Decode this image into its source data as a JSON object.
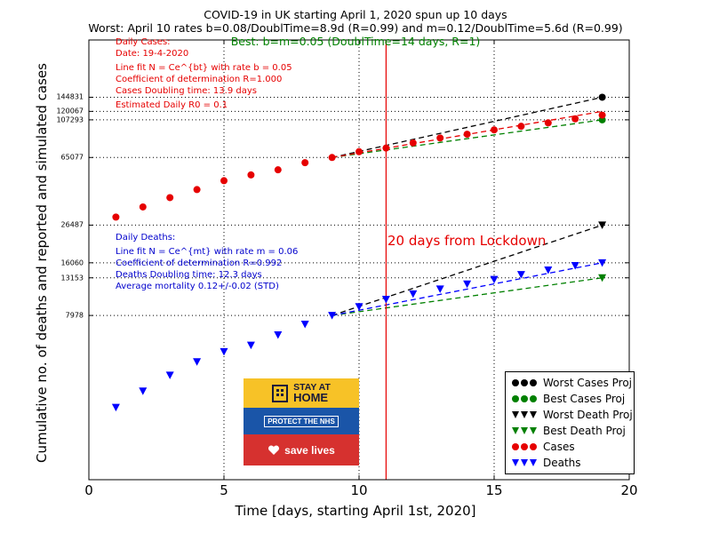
{
  "titles": {
    "line1": "COVID-19 in UK starting April 1, 2020 spun up 10 days",
    "line2": "Worst: April 10 rates b=0.08/DoublTime=8.9d (R=0.99) and m=0.12/DoublTime=5.6d (R=0.99)",
    "line3": "Best: b=m=0.05 (DoublTime=14 days, R=1)"
  },
  "annotations": {
    "cases": [
      "Daily Cases:",
      "Date: 19-4-2020",
      "Line fit N = Ce^{bt} with rate b = 0.05",
      "Coefficient of determination R=1.000",
      "Cases Doubling time: 13.9 days",
      "Estimated Daily R0 = 0.1"
    ],
    "deaths": [
      "Daily Deaths:",
      "Line fit N = Ce^{mt} with rate m = 0.06",
      "Coefficient of determination R=0.992",
      "Deaths Doubling time: 12.3 days",
      "Average mortality 0.12+/-0.02 (STD)"
    ],
    "lockdown_label": "20 days from Lockdown"
  },
  "logo": {
    "line_a": "STAY AT",
    "line_b": "HOME",
    "middle": "PROTECT THE NHS",
    "bottom": "save lives"
  },
  "colors": {
    "cases": "#e60000",
    "deaths": "#0000ff",
    "worst": "#000000",
    "best": "#008000",
    "vline": "#e60000",
    "grid": "#000000"
  },
  "chart_data": {
    "type": "scatter",
    "title": "COVID-19 in UK starting April 1, 2020 spun up 10 days",
    "xlabel": "Time [days, starting April 1st, 2020]",
    "ylabel": "Cumulative no. of deaths and reported and simulated cases",
    "xlim": [
      0,
      20
    ],
    "x_ticks": [
      0,
      5,
      10,
      15,
      20
    ],
    "y_scale": "log",
    "y_ticks": [
      7978,
      13153,
      16060,
      26487,
      65077,
      107293,
      120067,
      144831
    ],
    "grid": true,
    "vertical_line_x": 11,
    "series": [
      {
        "name": "Cases",
        "marker": "circle",
        "x": [
          1,
          2,
          3,
          4,
          5,
          6,
          7,
          8,
          9,
          10,
          11,
          12,
          13,
          14,
          15,
          16,
          17,
          18,
          19
        ],
        "y": [
          29474,
          33718,
          38168,
          42477,
          47806,
          51608,
          55242,
          60733,
          65077,
          70272,
          73758,
          78991,
          84279,
          88621,
          93873,
          98476,
          103093,
          108692,
          114217
        ]
      },
      {
        "name": "Deaths",
        "marker": "triangle-down",
        "x": [
          1,
          2,
          3,
          4,
          5,
          6,
          7,
          8,
          9,
          10,
          11,
          12,
          13,
          14,
          15,
          16,
          17,
          18,
          19
        ],
        "y": [
          2352,
          2921,
          3605,
          4313,
          4934,
          5373,
          6159,
          7097,
          7978,
          8958,
          9875,
          10612,
          11329,
          12107,
          12868,
          13729,
          14576,
          15464,
          16060
        ]
      },
      {
        "name": "Worst Cases Proj",
        "marker": "circle",
        "x": [
          9,
          19
        ],
        "y": [
          65077,
          144831
        ]
      },
      {
        "name": "Best Cases Proj",
        "marker": "circle",
        "x": [
          9,
          19
        ],
        "y": [
          65077,
          107293
        ]
      },
      {
        "name": "Worst Death Proj",
        "marker": "triangle-down",
        "x": [
          9,
          19
        ],
        "y": [
          7978,
          26487
        ]
      },
      {
        "name": "Best Death Proj",
        "marker": "triangle-down",
        "x": [
          9,
          19
        ],
        "y": [
          7978,
          13153
        ]
      }
    ],
    "fit_lines": [
      {
        "name": "Worst Cases Proj",
        "x": [
          9,
          19
        ],
        "y": [
          65077,
          144831
        ]
      },
      {
        "name": "Best Cases Proj",
        "x": [
          9,
          19
        ],
        "y": [
          65077,
          107293
        ]
      },
      {
        "name": "Cases",
        "x": [
          9,
          19
        ],
        "y": [
          65077,
          120067
        ]
      },
      {
        "name": "Worst Death Proj",
        "x": [
          9,
          19
        ],
        "y": [
          7978,
          26487
        ]
      },
      {
        "name": "Best Death Proj",
        "x": [
          9,
          19
        ],
        "y": [
          7978,
          13153
        ]
      },
      {
        "name": "Deaths",
        "x": [
          9,
          19
        ],
        "y": [
          7978,
          16060
        ]
      }
    ],
    "legend": {
      "placement": "bottom-right",
      "entries": [
        "Worst Cases Proj",
        "Best Cases Proj",
        "Worst Death Proj",
        "Best Death Proj",
        "Cases",
        "Deaths"
      ]
    }
  }
}
